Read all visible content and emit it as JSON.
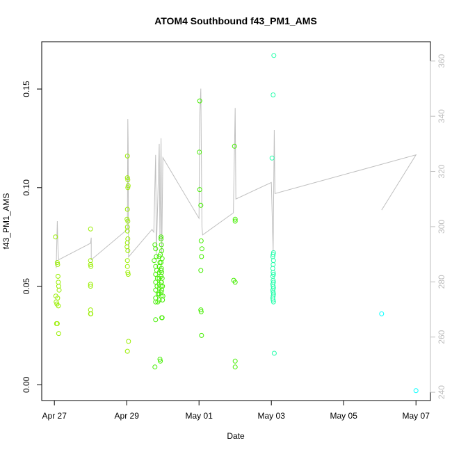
{
  "chart_data": {
    "type": "scatter",
    "title": "ATOM4 Southbound f43_PM1_AMS",
    "xlabel": "Date",
    "ylabel": "f43_PM1_AMS",
    "x_ticks": [
      "Apr 27",
      "Apr 29",
      "May 01",
      "May 03",
      "May 05",
      "May 07"
    ],
    "x_tick_days": [
      0,
      2,
      4,
      6,
      8,
      10
    ],
    "xlim_days": [
      -0.35,
      10.4
    ],
    "ylim": [
      -0.008,
      0.174
    ],
    "y_ticks": [
      0.0,
      0.05,
      0.1,
      0.15
    ],
    "y_tick_labels": [
      "0.00",
      "0.05",
      "0.10",
      "0.15"
    ],
    "y2lim": [
      237,
      367
    ],
    "y2_ticks": [
      240,
      260,
      280,
      300,
      320,
      340,
      360
    ],
    "y2_tick_labels": [
      "240",
      "260",
      "280",
      "300",
      "320",
      "340",
      "360"
    ],
    "line_color": "#bfbfbf",
    "point_colors": {
      "early": "#99ee00",
      "mid": "#44ee00",
      "late": "#22ffaa",
      "last": "#00ffff"
    },
    "series": [
      {
        "kind": "points",
        "axis": "left",
        "points": [
          [
            0.03,
            0.075
          ],
          [
            0.04,
            0.045
          ],
          [
            0.05,
            0.042
          ],
          [
            0.06,
            0.031
          ],
          [
            0.07,
            0.041
          ],
          [
            0.08,
            0.062
          ],
          [
            0.09,
            0.061
          ],
          [
            0.1,
            0.055
          ],
          [
            0.11,
            0.052
          ],
          [
            0.12,
            0.05
          ],
          [
            0.13,
            0.048
          ],
          [
            0.09,
            0.044
          ],
          [
            0.11,
            0.04
          ],
          [
            0.08,
            0.031
          ],
          [
            0.12,
            0.026
          ],
          [
            1.0,
            0.079
          ],
          [
            1.0,
            0.063
          ],
          [
            1.0,
            0.061
          ],
          [
            1.01,
            0.06
          ],
          [
            1.0,
            0.051
          ],
          [
            1.0,
            0.05
          ],
          [
            1.0,
            0.038
          ],
          [
            1.01,
            0.036
          ],
          [
            1.0,
            0.036
          ],
          [
            2.02,
            0.116
          ],
          [
            2.02,
            0.105
          ],
          [
            2.03,
            0.104
          ],
          [
            2.04,
            0.101
          ],
          [
            2.03,
            0.1
          ],
          [
            2.02,
            0.089
          ],
          [
            2.01,
            0.084
          ],
          [
            2.03,
            0.083
          ],
          [
            2.02,
            0.08
          ],
          [
            2.02,
            0.078
          ],
          [
            2.03,
            0.074
          ],
          [
            2.02,
            0.072
          ],
          [
            2.01,
            0.07
          ],
          [
            2.03,
            0.068
          ],
          [
            2.02,
            0.063
          ],
          [
            2.02,
            0.06
          ],
          [
            2.03,
            0.057
          ],
          [
            2.04,
            0.056
          ],
          [
            2.05,
            0.022
          ],
          [
            2.02,
            0.017
          ],
          [
            2.78,
            0.071
          ],
          [
            2.8,
            0.069
          ],
          [
            2.82,
            0.065
          ],
          [
            2.76,
            0.063
          ],
          [
            2.8,
            0.06
          ],
          [
            2.83,
            0.058
          ],
          [
            2.8,
            0.056
          ],
          [
            2.85,
            0.054
          ],
          [
            2.8,
            0.052
          ],
          [
            2.84,
            0.05
          ],
          [
            2.8,
            0.048
          ],
          [
            2.87,
            0.046
          ],
          [
            2.8,
            0.044
          ],
          [
            2.86,
            0.042
          ],
          [
            2.8,
            0.042
          ],
          [
            2.9,
            0.065
          ],
          [
            2.92,
            0.062
          ],
          [
            2.9,
            0.06
          ],
          [
            2.95,
            0.058
          ],
          [
            2.9,
            0.057
          ],
          [
            2.95,
            0.055
          ],
          [
            2.9,
            0.054
          ],
          [
            2.95,
            0.052
          ],
          [
            2.9,
            0.051
          ],
          [
            2.95,
            0.05
          ],
          [
            2.9,
            0.049
          ],
          [
            2.95,
            0.047
          ],
          [
            2.9,
            0.046
          ],
          [
            2.95,
            0.045
          ],
          [
            2.9,
            0.043
          ],
          [
            2.95,
            0.075
          ],
          [
            2.95,
            0.074
          ],
          [
            2.96,
            0.071
          ],
          [
            2.97,
            0.068
          ],
          [
            2.93,
            0.066
          ],
          [
            2.98,
            0.064
          ],
          [
            2.95,
            0.062
          ],
          [
            2.96,
            0.059
          ],
          [
            2.97,
            0.057
          ],
          [
            2.98,
            0.054
          ],
          [
            2.96,
            0.052
          ],
          [
            2.99,
            0.05
          ],
          [
            2.97,
            0.048
          ],
          [
            3.0,
            0.045
          ],
          [
            2.99,
            0.043
          ],
          [
            2.97,
            0.034
          ],
          [
            2.98,
            0.034
          ],
          [
            2.8,
            0.033
          ],
          [
            2.92,
            0.013
          ],
          [
            2.93,
            0.012
          ],
          [
            2.78,
            0.009
          ],
          [
            4.02,
            0.144
          ],
          [
            4.01,
            0.118
          ],
          [
            4.02,
            0.099
          ],
          [
            4.05,
            0.091
          ],
          [
            4.06,
            0.073
          ],
          [
            4.08,
            0.069
          ],
          [
            4.07,
            0.065
          ],
          [
            4.05,
            0.058
          ],
          [
            4.06,
            0.037
          ],
          [
            4.05,
            0.038
          ],
          [
            4.07,
            0.025
          ],
          [
            4.98,
            0.121
          ],
          [
            5.0,
            0.084
          ],
          [
            5.0,
            0.083
          ],
          [
            4.96,
            0.053
          ],
          [
            5.0,
            0.052
          ],
          [
            5.0,
            0.012
          ],
          [
            5.0,
            0.009
          ],
          [
            6.07,
            0.167
          ],
          [
            6.05,
            0.147
          ],
          [
            6.02,
            0.115
          ],
          [
            6.06,
            0.067
          ],
          [
            6.05,
            0.066
          ],
          [
            6.04,
            0.065
          ],
          [
            6.06,
            0.063
          ],
          [
            6.05,
            0.061
          ],
          [
            6.04,
            0.059
          ],
          [
            6.05,
            0.057
          ],
          [
            6.06,
            0.056
          ],
          [
            6.04,
            0.055
          ],
          [
            6.05,
            0.053
          ],
          [
            6.06,
            0.052
          ],
          [
            6.04,
            0.051
          ],
          [
            6.05,
            0.05
          ],
          [
            6.06,
            0.049
          ],
          [
            6.04,
            0.048
          ],
          [
            6.05,
            0.047
          ],
          [
            6.06,
            0.046
          ],
          [
            6.05,
            0.045
          ],
          [
            6.04,
            0.044
          ],
          [
            6.05,
            0.043
          ],
          [
            6.06,
            0.042
          ],
          [
            6.08,
            0.016
          ],
          [
            9.05,
            0.036
          ],
          [
            10.0,
            -0.003
          ]
        ]
      },
      {
        "kind": "line",
        "axis": "right",
        "points": [
          [
            0.05,
            285
          ],
          [
            0.08,
            302
          ],
          [
            0.1,
            292
          ],
          [
            0.12,
            288
          ],
          [
            1.0,
            294
          ],
          [
            1.02,
            296
          ],
          [
            1.02,
            288
          ],
          [
            2.02,
            299
          ],
          [
            2.03,
            339
          ],
          [
            2.04,
            330
          ],
          [
            2.05,
            289
          ],
          [
            2.7,
            299
          ],
          [
            2.75,
            298
          ],
          [
            2.8,
            326
          ],
          [
            2.82,
            290
          ],
          [
            2.9,
            330
          ],
          [
            2.92,
            295
          ],
          [
            2.95,
            332
          ],
          [
            2.97,
            290
          ],
          [
            3.0,
            325
          ],
          [
            4.0,
            303
          ],
          [
            4.02,
            340
          ],
          [
            4.05,
            350
          ],
          [
            4.08,
            300
          ],
          [
            4.1,
            297
          ],
          [
            4.95,
            305
          ],
          [
            5.0,
            343
          ],
          [
            5.02,
            310
          ],
          [
            6.0,
            316
          ],
          [
            6.05,
            291
          ],
          [
            6.08,
            335
          ],
          [
            6.1,
            312
          ],
          [
            10.0,
            326
          ],
          [
            9.05,
            306
          ]
        ]
      }
    ],
    "grid": false,
    "legend": "none"
  }
}
